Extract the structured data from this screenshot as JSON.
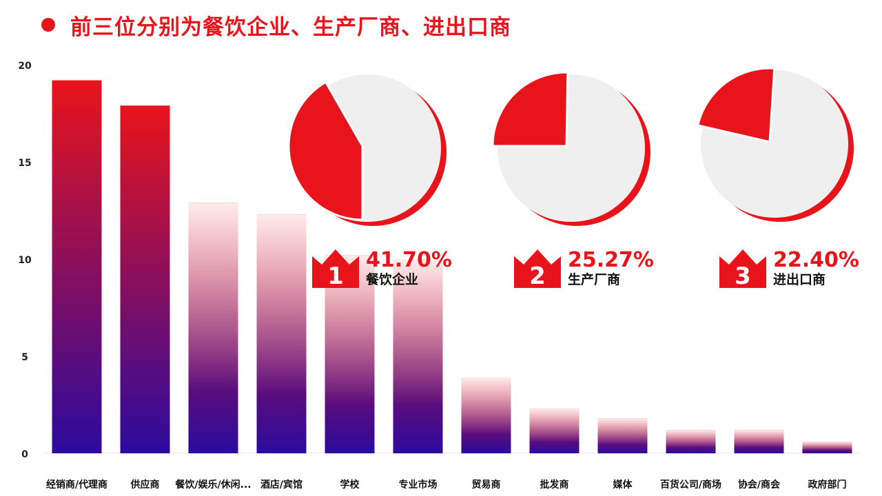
{
  "headline": "前三位分别为餐饮企业、生产厂商、进出口商",
  "colors": {
    "accent": "#e8141c",
    "bar_top": "#e8141c",
    "bar_bottom": "#2b0b9e",
    "pie_rest": "#efefef"
  },
  "chart_data": [
    {
      "type": "bar",
      "categories": [
        "经销商/代理商",
        "供应商",
        "餐饮/娱乐/休闲...",
        "酒店/宾馆",
        "学校",
        "专业市场",
        "贸易商",
        "批发商",
        "媒体",
        "百货公司/商场",
        "协会/商会",
        "政府部门"
      ],
      "values": [
        19.2,
        17.9,
        12.9,
        12.3,
        10.2,
        10.0,
        3.9,
        2.3,
        1.8,
        1.2,
        1.2,
        0.6
      ],
      "ylim": [
        0,
        20
      ],
      "yticks": [
        0,
        5,
        10,
        15,
        20
      ],
      "title": "",
      "xlabel": "",
      "ylabel": ""
    },
    {
      "type": "pie",
      "slices": [
        {
          "label": "餐饮企业",
          "value": 41.7
        },
        {
          "label": "生产厂商",
          "value": 25.27
        },
        {
          "label": "进出口商",
          "value": 22.4
        }
      ]
    }
  ],
  "rankings": [
    {
      "rank": "1",
      "percent": "41.70%",
      "label": "餐饮企业"
    },
    {
      "rank": "2",
      "percent": "25.27%",
      "label": "生产厂商"
    },
    {
      "rank": "3",
      "percent": "22.40%",
      "label": "进出口商"
    }
  ]
}
